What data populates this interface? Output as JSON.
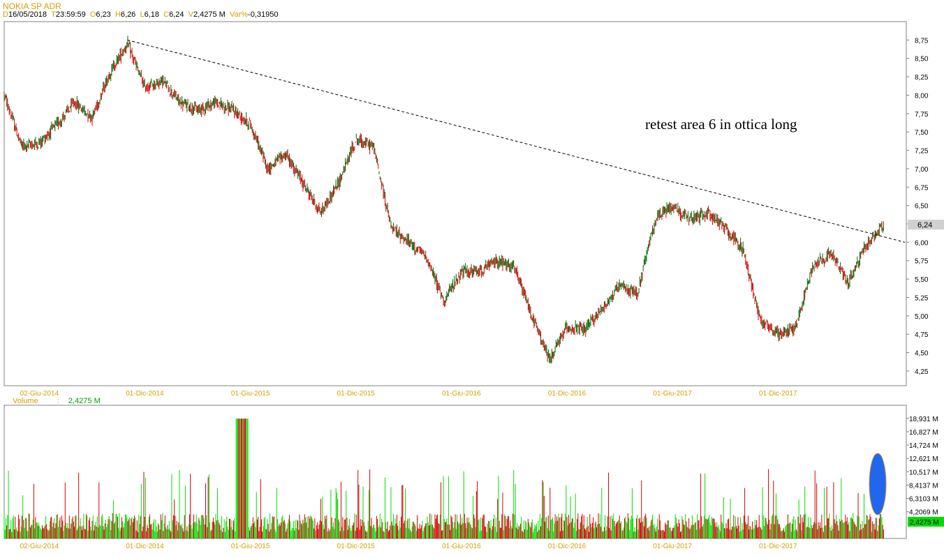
{
  "header": {
    "title": "NOKIA SP ADR",
    "date_key": "D",
    "date": "16/05/2018",
    "time_key": "T",
    "time": "23:59:59",
    "open_key": "O",
    "open": "6,23",
    "high_key": "H",
    "high": "6,26",
    "low_key": "L",
    "low": "6,18",
    "close_key": "C",
    "close": "6,24",
    "vol_key": "V",
    "vol": "2,4275 M",
    "var_key": "Var%",
    "var": "-0,31950"
  },
  "annotation": "retest area 6 in ottica long",
  "volume_label": {
    "name": "Volume",
    "sep": ":",
    "value": "2,4275 M"
  },
  "colors": {
    "up": "#006400",
    "down": "#d40000",
    "vol_up": "#00dd00",
    "vol_down": "#d40000",
    "axis_text": "#d4a000",
    "highlight": "#2266ee"
  },
  "chart_data": [
    {
      "type": "candlestick",
      "name": "price",
      "x_ticks": [
        "02-Giu-2014",
        "01-Dic-2014",
        "01-Giu-2015",
        "01-Dic-2015",
        "01-Giu-2016",
        "01-Dic-2016",
        "01-Giu-2017",
        "01-Dic-2017"
      ],
      "y_ticks": [
        "8,75",
        "8,50",
        "8,25",
        "8,00",
        "7,75",
        "7,50",
        "7,25",
        "7,00",
        "6,75",
        "6,50",
        "6,25",
        "6,00",
        "5,75",
        "5,50",
        "5,25",
        "5,00",
        "4,75",
        "4,50",
        "4,25"
      ],
      "ylim": [
        4.05,
        9.0
      ],
      "last_price_label": "6,24",
      "last_price": 6.24,
      "trendline": {
        "from": [
          "2014-10",
          8.75
        ],
        "to": [
          "2018-05",
          6.0
        ]
      },
      "path": [
        [
          "2014-03",
          8.0
        ],
        [
          "2014-04",
          7.3
        ],
        [
          "2014-05",
          7.35
        ],
        [
          "2014-06",
          7.6
        ],
        [
          "2014-07",
          7.9
        ],
        [
          "2014-08",
          7.7
        ],
        [
          "2014-09",
          8.3
        ],
        [
          "2014-10",
          8.7
        ],
        [
          "2014-11",
          8.1
        ],
        [
          "2014-12",
          8.2
        ],
        [
          "2015-01",
          7.9
        ],
        [
          "2015-02",
          7.8
        ],
        [
          "2015-03",
          7.9
        ],
        [
          "2015-04",
          7.8
        ],
        [
          "2015-05",
          7.6
        ],
        [
          "2015-06",
          7.0
        ],
        [
          "2015-07",
          7.2
        ],
        [
          "2015-08",
          6.8
        ],
        [
          "2015-09",
          6.4
        ],
        [
          "2015-10",
          6.8
        ],
        [
          "2015-11",
          7.4
        ],
        [
          "2015-12",
          7.3
        ],
        [
          "2016-01",
          6.2
        ],
        [
          "2016-02",
          6.0
        ],
        [
          "2016-03",
          5.8
        ],
        [
          "2016-04",
          5.2
        ],
        [
          "2016-05",
          5.6
        ],
        [
          "2016-06",
          5.6
        ],
        [
          "2016-07",
          5.75
        ],
        [
          "2016-08",
          5.65
        ],
        [
          "2016-09",
          5.0
        ],
        [
          "2016-10",
          4.4
        ],
        [
          "2016-11",
          4.85
        ],
        [
          "2016-12",
          4.8
        ],
        [
          "2017-01",
          5.1
        ],
        [
          "2017-02",
          5.4
        ],
        [
          "2017-03",
          5.3
        ],
        [
          "2017-04",
          6.3
        ],
        [
          "2017-05",
          6.5
        ],
        [
          "2017-06",
          6.3
        ],
        [
          "2017-07",
          6.4
        ],
        [
          "2017-08",
          6.2
        ],
        [
          "2017-09",
          5.9
        ],
        [
          "2017-10",
          4.95
        ],
        [
          "2017-11",
          4.75
        ],
        [
          "2017-12",
          4.85
        ],
        [
          "2018-01",
          5.7
        ],
        [
          "2018-02",
          5.85
        ],
        [
          "2018-03",
          5.45
        ],
        [
          "2018-04",
          5.95
        ],
        [
          "2018-05",
          6.24
        ]
      ]
    },
    {
      "type": "bar",
      "name": "Volume",
      "y_ticks": [
        "18,931 M",
        "16,827 M",
        "14,724 M",
        "12,621 M",
        "10,517 M",
        "8,4137 M",
        "6,3103 M",
        "4,2069 M"
      ],
      "ylim": [
        0,
        21.0
      ],
      "last_volume_label": "2,4275 M",
      "last_volume": 2.4275,
      "typical_range": [
        1.0,
        6.0
      ]
    }
  ]
}
